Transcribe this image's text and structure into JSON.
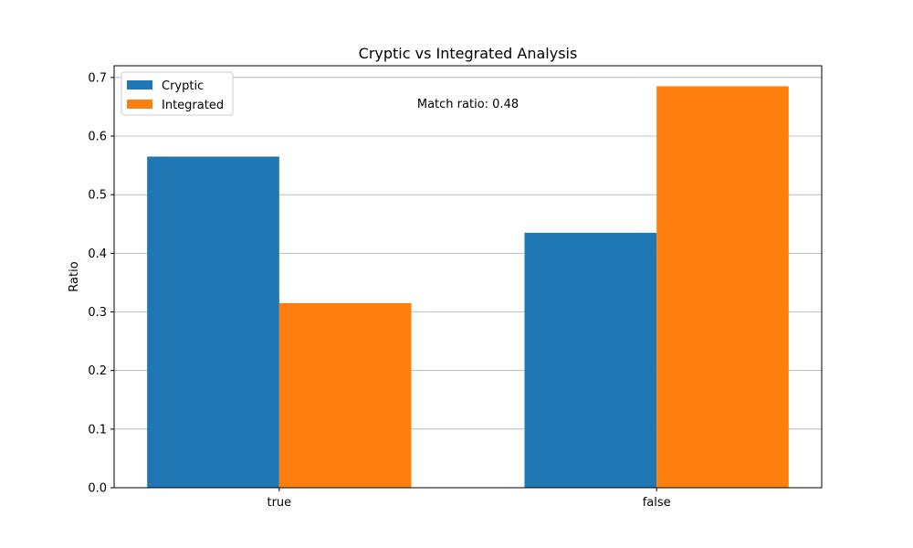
{
  "chart_data": {
    "type": "bar",
    "title": "Cryptic vs Integrated Analysis",
    "xlabel": "",
    "ylabel": "Ratio",
    "categories": [
      "true",
      "false"
    ],
    "series": [
      {
        "name": "Cryptic",
        "values": [
          0.565,
          0.435
        ],
        "color": "#1f77b4"
      },
      {
        "name": "Integrated",
        "values": [
          0.315,
          0.685
        ],
        "color": "#ff7f0e"
      }
    ],
    "ylim": [
      0,
      0.72
    ],
    "yticks": [
      "0.0",
      "0.1",
      "0.2",
      "0.3",
      "0.4",
      "0.5",
      "0.6",
      "0.7"
    ],
    "grid": {
      "y": true,
      "x": false
    },
    "legend_position": "top-left",
    "annotation": "Match ratio: 0.48"
  }
}
